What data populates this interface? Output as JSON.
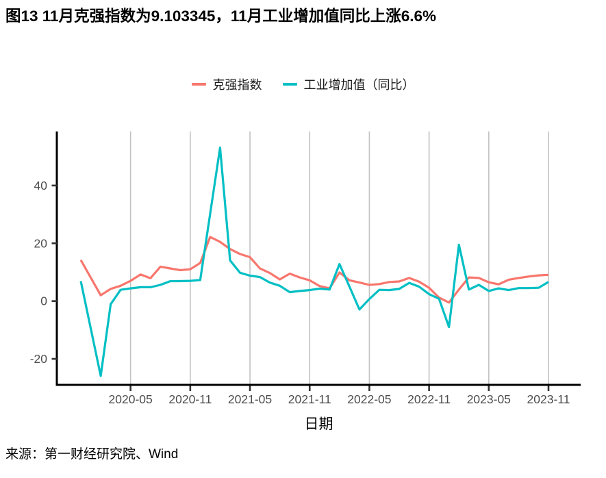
{
  "title": "图13 11月克强指数为9.103345，11月工业增加值同比上涨6.6%",
  "source": "来源：第一财经研究院、Wind",
  "chart_data": {
    "type": "line",
    "title": "",
    "xlabel": "日期",
    "ylabel": "",
    "x_start": "2019-12",
    "x_end": "2023-11",
    "ylim": [
      -29.0,
      58.7
    ],
    "yticks": [
      40,
      20,
      0,
      -20
    ],
    "xticks": [
      "2020-05",
      "2020-11",
      "2021-05",
      "2021-11",
      "2022-05",
      "2022-11",
      "2023-05",
      "2023-11"
    ],
    "grid": "vertical-major-only",
    "legend_position": "top-center",
    "axis_color": "#000000",
    "grid_color": "#c2c2c2",
    "tick_label_color": "#4d4d4d",
    "series": [
      {
        "name": "克强指数",
        "color": "#F8766D",
        "points": [
          [
            "2019-12",
            14.2
          ],
          [
            "2020-02",
            2.0
          ],
          [
            "2020-03",
            4.2
          ],
          [
            "2020-04",
            5.3
          ],
          [
            "2020-05",
            7.0
          ],
          [
            "2020-06",
            9.2
          ],
          [
            "2020-07",
            7.9
          ],
          [
            "2020-08",
            11.9
          ],
          [
            "2020-09",
            11.3
          ],
          [
            "2020-10",
            10.7
          ],
          [
            "2020-11",
            11.0
          ],
          [
            "2020-12",
            13.2
          ],
          [
            "2021-01",
            22.2
          ],
          [
            "2021-02",
            20.5
          ],
          [
            "2021-03",
            18.0
          ],
          [
            "2021-04",
            16.3
          ],
          [
            "2021-05",
            15.2
          ],
          [
            "2021-06",
            11.3
          ],
          [
            "2021-07",
            9.7
          ],
          [
            "2021-08",
            7.5
          ],
          [
            "2021-09",
            9.5
          ],
          [
            "2021-10",
            8.2
          ],
          [
            "2021-11",
            7.2
          ],
          [
            "2021-12",
            5.2
          ],
          [
            "2022-01",
            4.4
          ],
          [
            "2022-02",
            9.9
          ],
          [
            "2022-03",
            7.2
          ],
          [
            "2022-04",
            6.4
          ],
          [
            "2022-05",
            5.6
          ],
          [
            "2022-06",
            5.9
          ],
          [
            "2022-07",
            6.6
          ],
          [
            "2022-08",
            6.8
          ],
          [
            "2022-09",
            8.0
          ],
          [
            "2022-10",
            6.7
          ],
          [
            "2022-11",
            4.6
          ],
          [
            "2022-12",
            1.2
          ],
          [
            "2023-01",
            -0.5
          ],
          [
            "2023-02",
            4.0
          ],
          [
            "2023-03",
            8.2
          ],
          [
            "2023-04",
            8.0
          ],
          [
            "2023-05",
            6.5
          ],
          [
            "2023-06",
            5.8
          ],
          [
            "2023-07",
            7.4
          ],
          [
            "2023-08",
            8.0
          ],
          [
            "2023-09",
            8.5
          ],
          [
            "2023-10",
            8.9
          ],
          [
            "2023-11",
            9.1
          ]
        ]
      },
      {
        "name": "工业增加值（同比）",
        "color": "#00BFC4",
        "points": [
          [
            "2019-12",
            6.9
          ],
          [
            "2020-02",
            -25.9
          ],
          [
            "2020-03",
            -1.1
          ],
          [
            "2020-04",
            3.9
          ],
          [
            "2020-05",
            4.4
          ],
          [
            "2020-06",
            4.8
          ],
          [
            "2020-07",
            4.8
          ],
          [
            "2020-08",
            5.6
          ],
          [
            "2020-09",
            6.9
          ],
          [
            "2020-10",
            6.9
          ],
          [
            "2020-11",
            7.0
          ],
          [
            "2020-12",
            7.3
          ],
          [
            "2021-02",
            53.1
          ],
          [
            "2021-03",
            14.1
          ],
          [
            "2021-04",
            9.8
          ],
          [
            "2021-05",
            8.8
          ],
          [
            "2021-06",
            8.3
          ],
          [
            "2021-07",
            6.4
          ],
          [
            "2021-08",
            5.3
          ],
          [
            "2021-09",
            3.1
          ],
          [
            "2021-10",
            3.5
          ],
          [
            "2021-11",
            3.8
          ],
          [
            "2021-12",
            4.3
          ],
          [
            "2022-01",
            4.0
          ],
          [
            "2022-02",
            12.8
          ],
          [
            "2022-03",
            5.0
          ],
          [
            "2022-04",
            -2.9
          ],
          [
            "2022-05",
            0.7
          ],
          [
            "2022-06",
            3.9
          ],
          [
            "2022-07",
            3.8
          ],
          [
            "2022-08",
            4.2
          ],
          [
            "2022-09",
            6.3
          ],
          [
            "2022-10",
            5.0
          ],
          [
            "2022-11",
            2.4
          ],
          [
            "2022-12",
            0.8
          ],
          [
            "2023-01",
            -9.0
          ],
          [
            "2023-02",
            19.5
          ],
          [
            "2023-03",
            4.0
          ],
          [
            "2023-04",
            5.6
          ],
          [
            "2023-05",
            3.5
          ],
          [
            "2023-06",
            4.4
          ],
          [
            "2023-07",
            3.8
          ],
          [
            "2023-08",
            4.5
          ],
          [
            "2023-09",
            4.5
          ],
          [
            "2023-10",
            4.6
          ],
          [
            "2023-11",
            6.6
          ]
        ]
      }
    ]
  }
}
